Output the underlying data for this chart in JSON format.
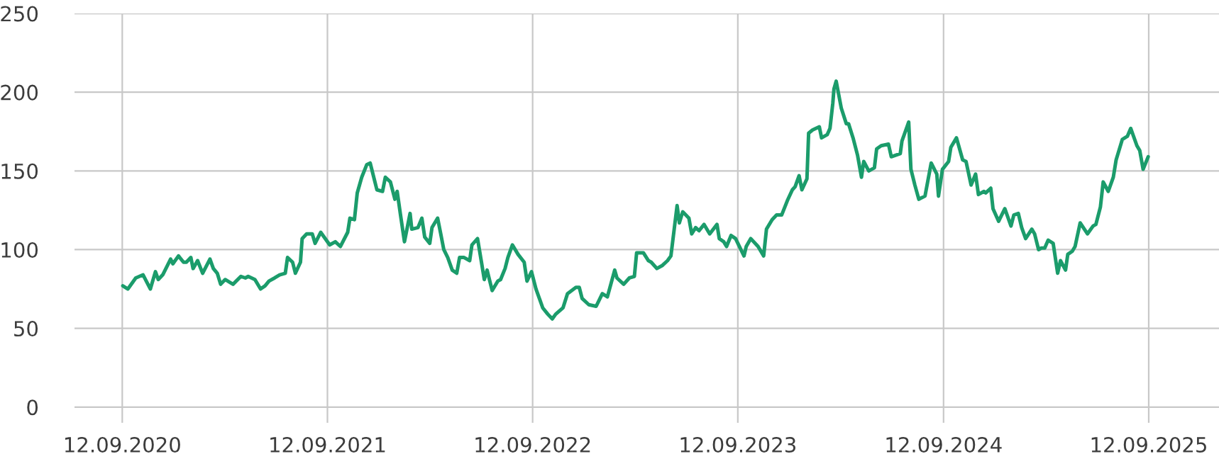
{
  "chart_data": {
    "type": "line",
    "color": "#1b9c6b",
    "x": [
      "2020-09-13",
      "2020-09-22",
      "2020-10-06",
      "2020-10-19",
      "2020-11-01",
      "2020-11-10",
      "2020-11-15",
      "2020-11-23",
      "2020-12-07",
      "2020-12-11",
      "2020-12-21",
      "2020-12-30",
      "2021-01-04",
      "2021-01-12",
      "2021-01-16",
      "2021-01-24",
      "2021-02-02",
      "2021-02-15",
      "2021-02-21",
      "2021-02-28",
      "2021-03-06",
      "2021-03-14",
      "2021-03-28",
      "2021-04-11",
      "2021-04-19",
      "2021-04-24",
      "2021-05-06",
      "2021-05-16",
      "2021-05-24",
      "2021-05-31",
      "2021-06-10",
      "2021-06-19",
      "2021-06-29",
      "2021-07-03",
      "2021-07-12",
      "2021-07-17",
      "2021-07-26",
      "2021-07-29",
      "2021-08-06",
      "2021-08-16",
      "2021-08-21",
      "2021-08-31",
      "2021-09-16",
      "2021-09-26",
      "2021-10-05",
      "2021-10-18",
      "2021-10-22",
      "2021-10-30",
      "2021-11-04",
      "2021-11-12",
      "2021-11-21",
      "2021-11-27",
      "2021-12-09",
      "2021-12-19",
      "2021-12-24",
      "2022-01-02",
      "2022-01-10",
      "2022-01-14",
      "2022-01-20",
      "2022-01-27",
      "2022-02-06",
      "2022-02-09",
      "2022-02-20",
      "2022-02-27",
      "2022-03-04",
      "2022-03-13",
      "2022-03-17",
      "2022-03-27",
      "2022-04-01",
      "2022-04-07",
      "2022-04-14",
      "2022-04-22",
      "2022-04-30",
      "2022-05-05",
      "2022-05-13",
      "2022-05-23",
      "2022-05-27",
      "2022-06-06",
      "2022-06-13",
      "2022-06-18",
      "2022-06-23",
      "2022-07-02",
      "2022-07-12",
      "2022-07-17",
      "2022-07-25",
      "2022-07-30",
      "2022-08-07",
      "2022-08-17",
      "2022-08-28",
      "2022-09-02",
      "2022-09-10",
      "2022-09-18",
      "2022-09-30",
      "2022-10-09",
      "2022-10-17",
      "2022-10-23",
      "2022-11-05",
      "2022-11-13",
      "2022-11-28",
      "2022-12-04",
      "2022-12-09",
      "2022-12-21",
      "2023-01-03",
      "2023-01-14",
      "2023-01-23",
      "2023-02-05",
      "2023-02-09",
      "2023-02-21",
      "2023-03-03",
      "2023-03-12",
      "2023-03-16",
      "2023-03-28",
      "2023-04-06",
      "2023-04-11",
      "2023-04-21",
      "2023-05-01",
      "2023-05-10",
      "2023-05-16",
      "2023-05-27",
      "2023-05-31",
      "2023-06-06",
      "2023-06-17",
      "2023-06-22",
      "2023-06-29",
      "2023-07-05",
      "2023-07-14",
      "2023-07-24",
      "2023-08-06",
      "2023-08-10",
      "2023-08-18",
      "2023-08-23",
      "2023-08-31",
      "2023-09-08",
      "2023-09-23",
      "2023-09-27",
      "2023-10-05",
      "2023-10-18",
      "2023-10-28",
      "2023-11-02",
      "2023-11-12",
      "2023-11-20",
      "2023-11-29",
      "2023-12-09",
      "2023-12-18",
      "2023-12-23",
      "2023-12-30",
      "2024-01-04",
      "2024-01-13",
      "2024-01-16",
      "2024-01-23",
      "2024-02-04",
      "2024-02-08",
      "2024-02-18",
      "2024-02-23",
      "2024-02-28",
      "2024-03-01",
      "2024-03-05",
      "2024-03-14",
      "2024-03-23",
      "2024-03-27",
      "2024-04-04",
      "2024-04-12",
      "2024-04-19",
      "2024-04-23",
      "2024-05-02",
      "2024-05-12",
      "2024-05-16",
      "2024-05-24",
      "2024-06-06",
      "2024-06-11",
      "2024-06-27",
      "2024-06-30",
      "2024-07-12",
      "2024-07-16",
      "2024-07-23",
      "2024-07-30",
      "2024-08-10",
      "2024-08-21",
      "2024-08-31",
      "2024-09-03",
      "2024-09-10",
      "2024-09-21",
      "2024-09-25",
      "2024-10-05",
      "2024-10-16",
      "2024-10-22",
      "2024-10-31",
      "2024-11-08",
      "2024-11-13",
      "2024-11-23",
      "2024-11-26",
      "2024-12-05",
      "2024-12-09",
      "2024-12-19",
      "2024-12-30",
      "2025-01-10",
      "2025-01-15",
      "2025-01-23",
      "2025-01-29",
      "2025-02-05",
      "2025-02-16",
      "2025-02-21",
      "2025-02-28",
      "2025-03-05",
      "2025-03-11",
      "2025-03-17",
      "2025-03-26",
      "2025-04-03",
      "2025-04-08",
      "2025-04-17",
      "2025-04-21",
      "2025-04-29",
      "2025-05-04",
      "2025-05-13",
      "2025-05-26",
      "2025-06-05",
      "2025-06-10",
      "2025-06-18",
      "2025-06-23",
      "2025-07-02",
      "2025-07-11",
      "2025-07-16",
      "2025-07-27",
      "2025-08-05",
      "2025-08-11",
      "2025-08-22",
      "2025-08-27",
      "2025-09-02",
      "2025-09-11"
    ],
    "values": [
      77,
      75,
      82,
      84,
      75,
      86,
      81,
      84,
      94,
      91,
      96,
      92,
      92,
      95,
      88,
      93,
      85,
      94,
      88,
      85,
      78,
      81,
      78,
      83,
      82,
      83,
      81,
      75,
      77,
      80,
      82,
      84,
      85,
      95,
      92,
      85,
      92,
      107,
      110,
      110,
      104,
      111,
      103,
      105,
      102,
      111,
      120,
      119,
      136,
      146,
      154,
      155,
      138,
      137,
      146,
      143,
      132,
      137,
      122,
      105,
      123,
      113,
      114,
      120,
      108,
      104,
      114,
      120,
      111,
      100,
      95,
      87,
      85,
      95,
      95,
      93,
      103,
      107,
      92,
      81,
      87,
      74,
      80,
      81,
      88,
      95,
      103,
      97,
      92,
      80,
      86,
      75,
      63,
      59,
      56,
      59,
      63,
      72,
      76,
      76,
      69,
      65,
      64,
      72,
      70,
      87,
      82,
      78,
      82,
      83,
      98,
      98,
      93,
      92,
      88,
      90,
      93,
      96,
      128,
      117,
      124,
      120,
      110,
      114,
      112,
      116,
      110,
      116,
      107,
      105,
      102,
      109,
      107,
      96,
      102,
      107,
      102,
      96,
      113,
      119,
      122,
      122,
      131,
      138,
      140,
      147,
      138,
      145,
      174,
      176,
      178,
      171,
      173,
      177,
      193,
      202,
      207,
      190,
      180,
      180,
      171,
      160,
      146,
      156,
      150,
      152,
      164,
      166,
      167,
      159,
      161,
      169,
      181,
      151,
      141,
      132,
      134,
      155,
      148,
      134,
      151,
      156,
      165,
      171,
      157,
      156,
      141,
      148,
      135,
      137,
      136,
      139,
      126,
      118,
      126,
      115,
      122,
      123,
      114,
      107,
      113,
      110,
      100,
      101,
      101,
      106,
      104,
      85,
      93,
      87,
      97,
      99,
      102,
      117,
      110,
      115,
      116,
      127,
      143,
      137,
      146,
      157,
      170,
      172,
      177,
      166,
      163,
      151,
      159
    ],
    "xlim": [
      "2020-06-19",
      "2026-01-15"
    ],
    "ylim": [
      -10,
      250
    ],
    "xticks": [
      {
        "value": "2020-09-12",
        "label": "12.09.2020"
      },
      {
        "value": "2021-09-12",
        "label": "12.09.2021"
      },
      {
        "value": "2022-09-12",
        "label": "12.09.2022"
      },
      {
        "value": "2023-09-12",
        "label": "12.09.2023"
      },
      {
        "value": "2024-09-12",
        "label": "12.09.2024"
      },
      {
        "value": "2025-09-12",
        "label": "12.09.2025"
      }
    ],
    "yticks": [
      0,
      50,
      100,
      150,
      200,
      250
    ],
    "grid": true
  }
}
